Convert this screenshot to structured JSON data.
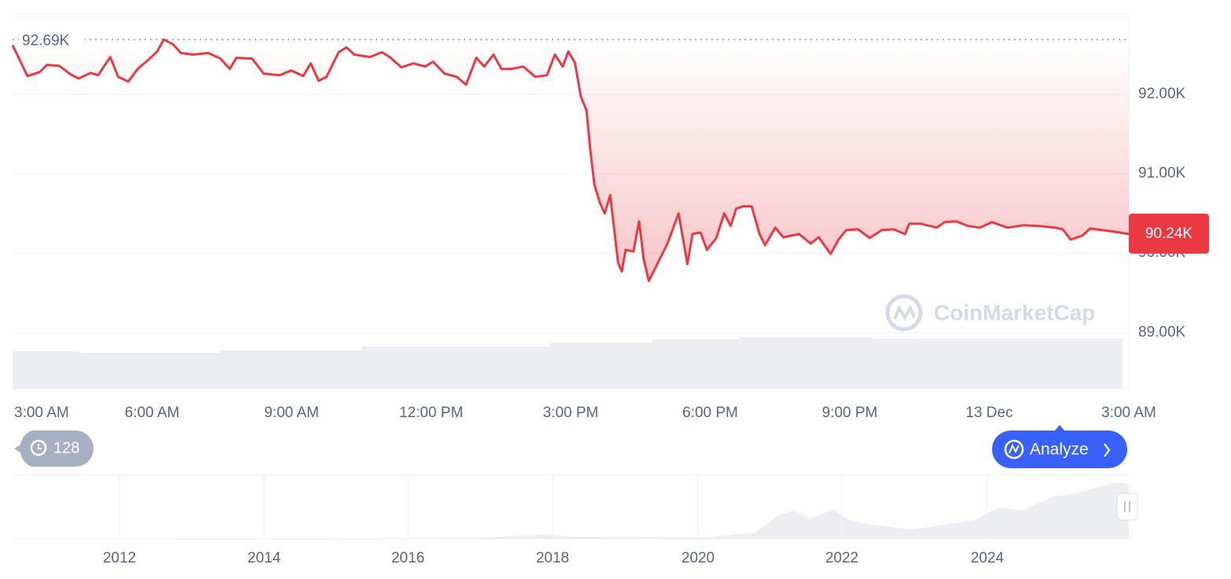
{
  "chart_data": {
    "type": "line",
    "color": "#ea3943",
    "watermark": "CoinMarketCap",
    "x": [
      0,
      0.32,
      0.58,
      0.74,
      1.0,
      1.25,
      1.42,
      1.68,
      1.84,
      2.1,
      2.27,
      2.49,
      2.69,
      2.95,
      3.11,
      3.25,
      3.45,
      3.62,
      3.88,
      4.21,
      4.47,
      4.67,
      4.81,
      5.15,
      5.4,
      5.74,
      5.99,
      6.25,
      6.41,
      6.58,
      6.75,
      7.01,
      7.18,
      7.35,
      7.68,
      7.94,
      8.11,
      8.36,
      8.62,
      8.87,
      9.04,
      9.29,
      9.55,
      9.75,
      9.97,
      10.14,
      10.34,
      10.51,
      10.73,
      10.98,
      11.24,
      11.49,
      11.66,
      11.83,
      11.95,
      12.09,
      12.22,
      12.34,
      12.42,
      12.51,
      12.63,
      12.73,
      12.85,
      13.02,
      13.1,
      13.18,
      13.35,
      13.47,
      13.57,
      13.68,
      13.86,
      14.08,
      14.32,
      14.51,
      14.62,
      14.79,
      14.93,
      15.13,
      15.3,
      15.44,
      15.56,
      15.72,
      15.89,
      16.06,
      16.18,
      16.4,
      16.57,
      16.91,
      17.16,
      17.33,
      17.59,
      17.76,
      17.92,
      18.18,
      18.43,
      18.69,
      18.94,
      19.19,
      19.28,
      19.53,
      19.87,
      20.04,
      20.29,
      20.55,
      20.8,
      21.06,
      21.39,
      21.73,
      22.07,
      22.41,
      22.58,
      22.75,
      23.0,
      23.17,
      23.43,
      23.68,
      24
    ],
    "values": [
      92620,
      92230,
      92280,
      92370,
      92360,
      92250,
      92200,
      92270,
      92240,
      92470,
      92220,
      92160,
      92320,
      92450,
      92540,
      92690,
      92630,
      92520,
      92500,
      92520,
      92450,
      92320,
      92460,
      92450,
      92260,
      92240,
      92300,
      92230,
      92390,
      92170,
      92220,
      92530,
      92590,
      92500,
      92470,
      92530,
      92470,
      92340,
      92390,
      92350,
      92410,
      92260,
      92220,
      92120,
      92460,
      92350,
      92500,
      92320,
      92320,
      92350,
      92220,
      92240,
      92500,
      92350,
      92540,
      92400,
      91970,
      91800,
      91310,
      90860,
      90630,
      90500,
      90730,
      89870,
      89770,
      90040,
      90020,
      90400,
      89920,
      89650,
      89860,
      90120,
      90500,
      89860,
      90240,
      90260,
      90040,
      90190,
      90500,
      90340,
      90560,
      90590,
      90590,
      90240,
      90100,
      90320,
      90200,
      90240,
      90120,
      90200,
      89990,
      90170,
      90290,
      90300,
      90190,
      90290,
      90300,
      90240,
      90370,
      90370,
      90320,
      90390,
      90400,
      90340,
      90320,
      90390,
      90320,
      90350,
      90340,
      90320,
      90300,
      90170,
      90220,
      90310,
      90290,
      90270,
      90240
    ],
    "xlim": [
      0,
      24
    ],
    "xticks": [
      {
        "value": 0,
        "label": "3:00 AM"
      },
      {
        "value": 3,
        "label": "6:00 AM"
      },
      {
        "value": 6,
        "label": "9:00 AM"
      },
      {
        "value": 9,
        "label": "12:00 PM"
      },
      {
        "value": 12,
        "label": "3:00 PM"
      },
      {
        "value": 15,
        "label": "6:00 PM"
      },
      {
        "value": 18,
        "label": "9:00 PM"
      },
      {
        "value": 21,
        "label": "13 Dec"
      },
      {
        "value": 24,
        "label": "3:00 AM"
      }
    ],
    "ylim": [
      88290,
      93010
    ],
    "yticks": [
      {
        "value": 89000,
        "label": "89.00K"
      },
      {
        "value": 90000,
        "label": "90.00K"
      },
      {
        "value": 91000,
        "label": "91.00K"
      },
      {
        "value": 92000,
        "label": "92.00K"
      }
    ],
    "grid": true,
    "annotations": [
      {
        "value": 92690,
        "label": "92.69K"
      },
      {
        "value": 90240,
        "label": "90.24K"
      }
    ]
  },
  "controls": {
    "history_count": "128",
    "analyze": "Analyze"
  },
  "navigator": {
    "year_labels": [
      "2012",
      "2014",
      "2016",
      "2018",
      "2020",
      "2022",
      "2024"
    ]
  }
}
